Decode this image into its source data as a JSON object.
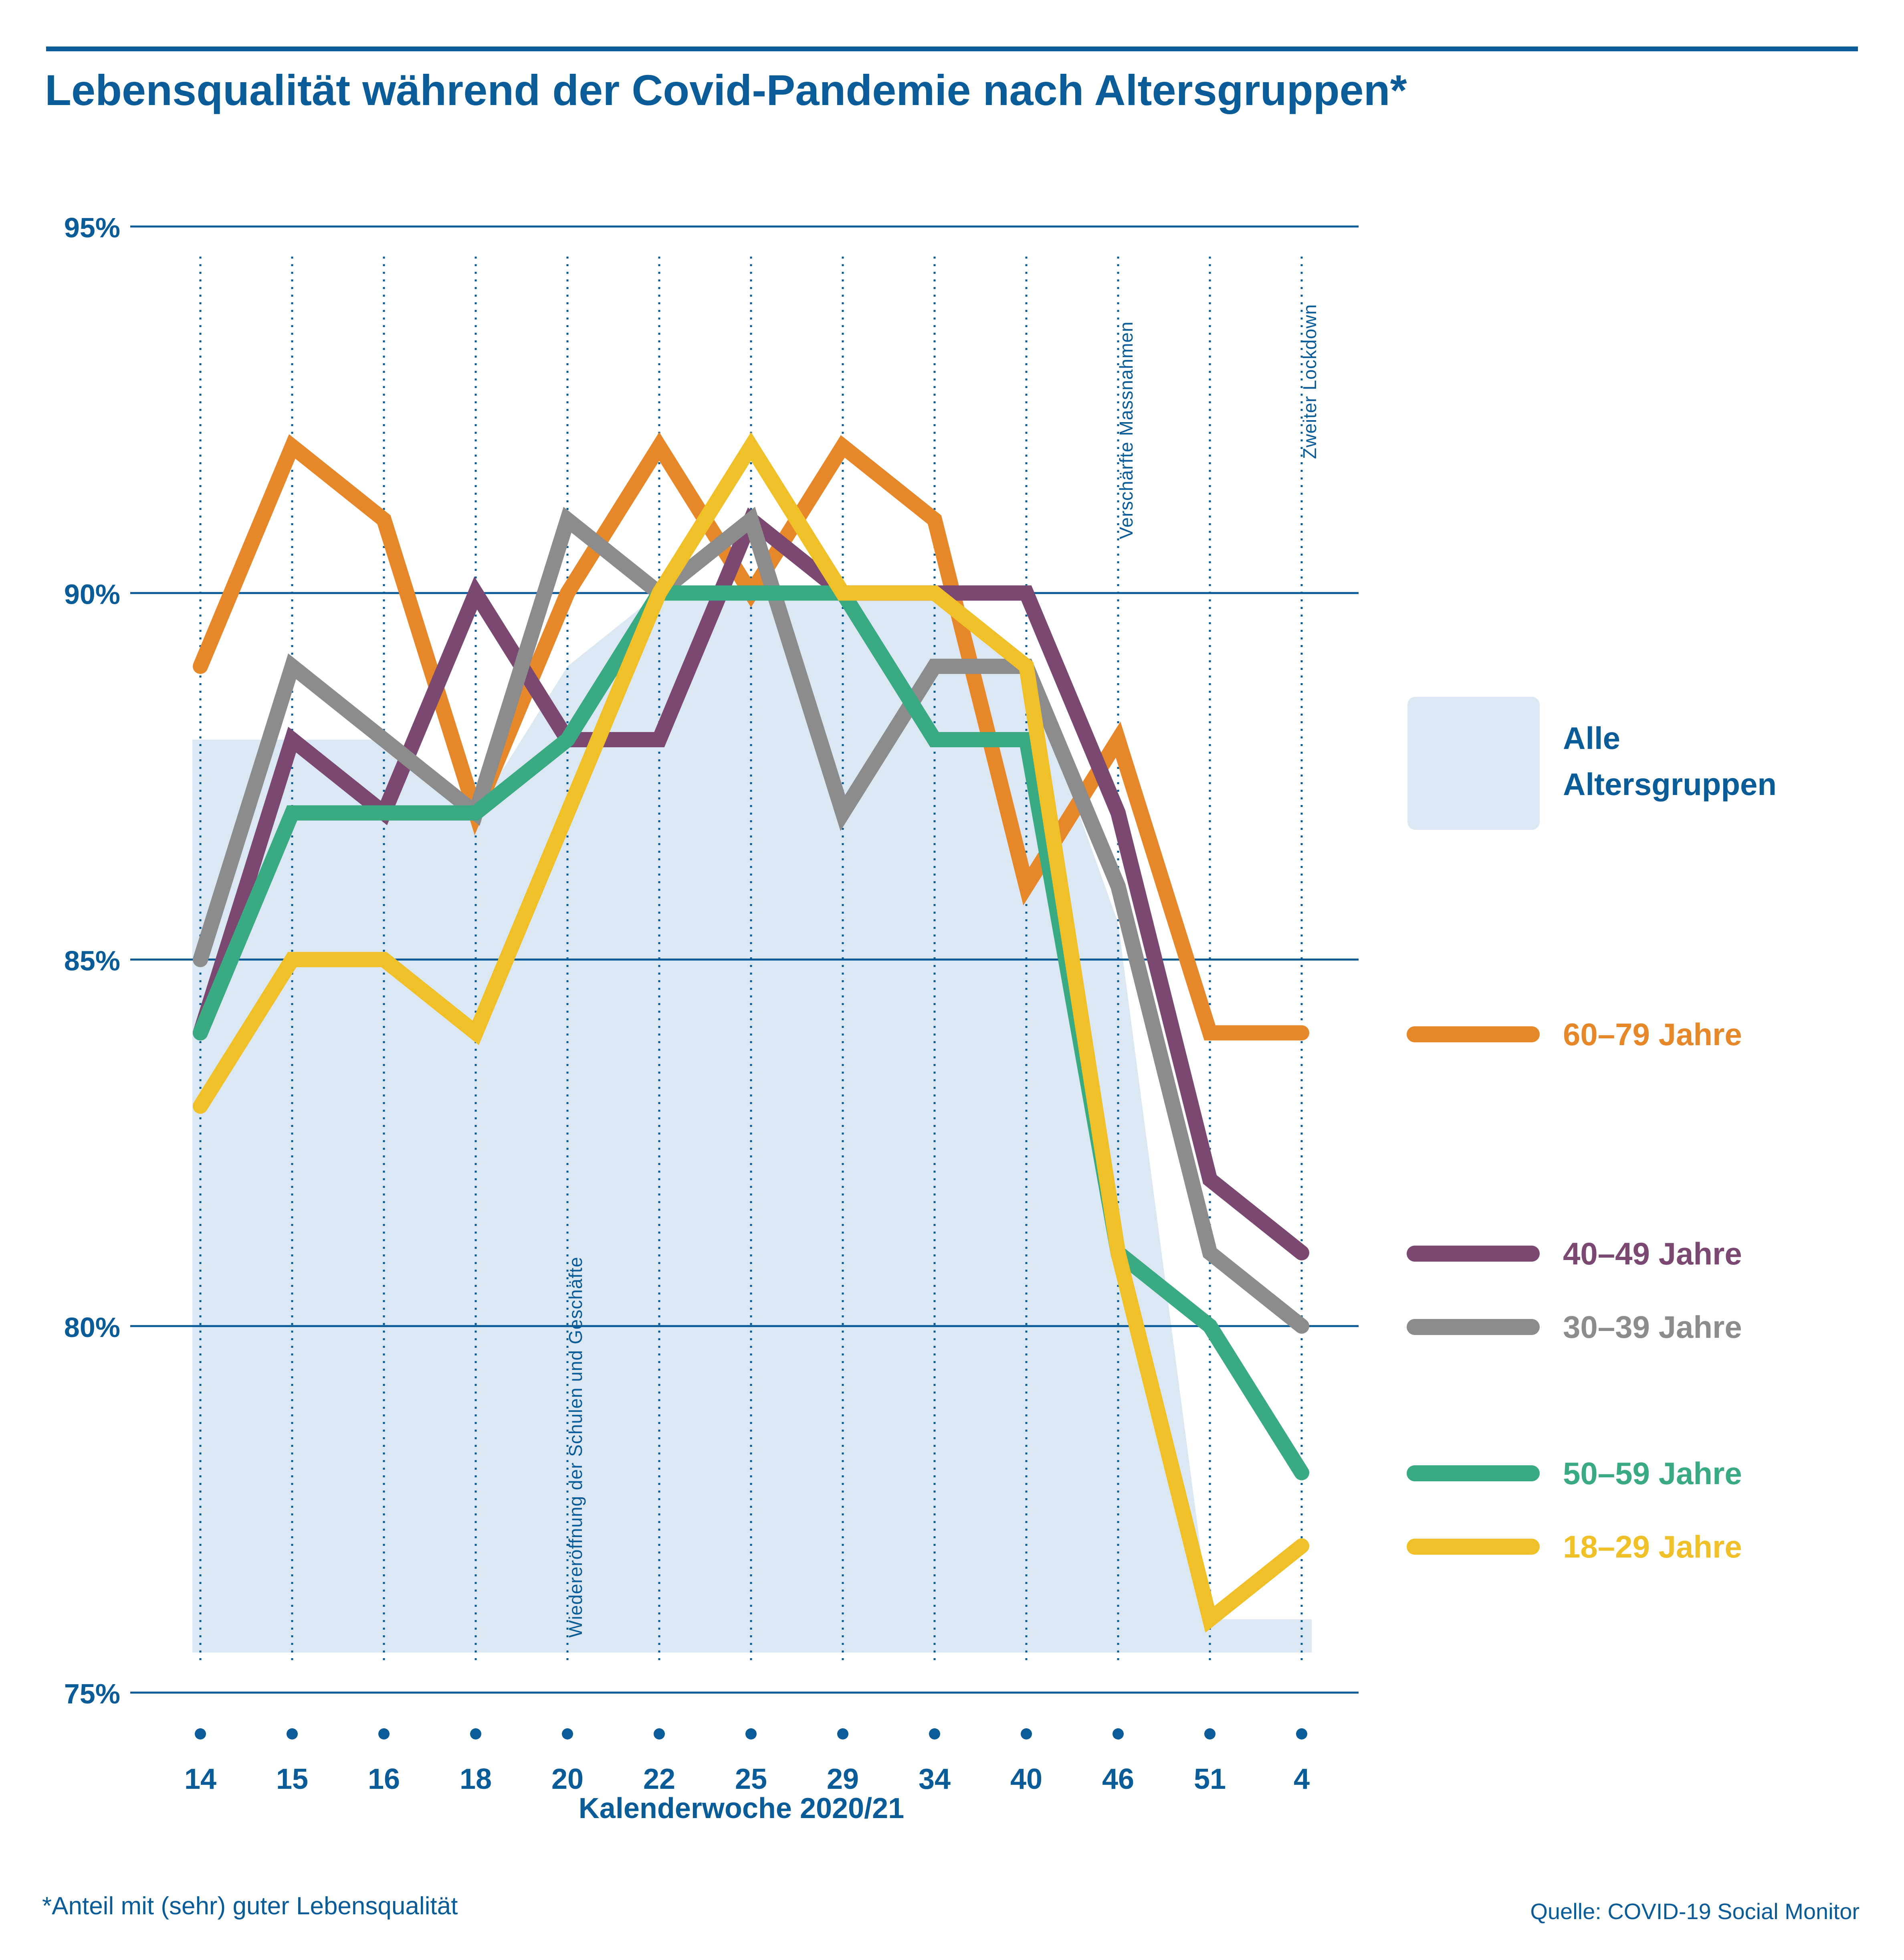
{
  "title": "Lebensqualität während der Covid-Pandemie nach Altersgruppen*",
  "footnote": "*Anteil mit (sehr) guter Lebensqualität",
  "source": "Quelle: COVID-19 Social Monitor",
  "colors": {
    "brand": "#0a5c99",
    "area": "#dbe7f2",
    "age_60_79": "#e6872a",
    "age_40_49": "#7a4870",
    "age_30_39": "#8c8c8c",
    "age_50_59": "#3aaa82",
    "age_18_29": "#f0c028"
  },
  "chart_data": {
    "type": "line",
    "title": "Lebensqualität während der Covid-Pandemie nach Altersgruppen*",
    "xlabel": "Kalenderwoche 2020/21",
    "ylabel": "",
    "categories": [
      "14",
      "15",
      "16",
      "18",
      "20",
      "22",
      "25",
      "29",
      "34",
      "40",
      "46",
      "51",
      "4"
    ],
    "ylim": [
      75,
      95
    ],
    "yticks": [
      95,
      90,
      85,
      80,
      75
    ],
    "ytick_labels": [
      "95%",
      "90%",
      "85%",
      "80%",
      "75%"
    ],
    "grid": true,
    "legend_position": "right",
    "area": {
      "name": "Alle Altersgruppen",
      "values": [
        88,
        88,
        88,
        87,
        89,
        90,
        90,
        90,
        90,
        89,
        85.5,
        76,
        76
      ]
    },
    "series": [
      {
        "name": "60–79 Jahre",
        "color_key": "age_60_79",
        "values": [
          89,
          92,
          91,
          87,
          90,
          92,
          90,
          92,
          91,
          86,
          88,
          84,
          84
        ]
      },
      {
        "name": "40–49 Jahre",
        "color_key": "age_40_49",
        "values": [
          84,
          88,
          87,
          90,
          88,
          88,
          91,
          90,
          90,
          90,
          87,
          82,
          81
        ]
      },
      {
        "name": "30–39 Jahre",
        "color_key": "age_30_39",
        "values": [
          85,
          89,
          88,
          87,
          91,
          90,
          91,
          87,
          89,
          89,
          86,
          81,
          80
        ]
      },
      {
        "name": "50–59 Jahre",
        "color_key": "age_50_59",
        "values": [
          84,
          87,
          87,
          87,
          88,
          90,
          90,
          90,
          88,
          88,
          81,
          80,
          78
        ]
      },
      {
        "name": "18–29 Jahre",
        "color_key": "age_18_29",
        "values": [
          83,
          85,
          85,
          84,
          87,
          90,
          92,
          90,
          90,
          89,
          81,
          76,
          77
        ]
      }
    ],
    "annotations": [
      {
        "category": "20",
        "text": "Wiedereröffnung der Schulen und Geschäfte"
      },
      {
        "category": "46",
        "text": "Verschärfte Massnahmen"
      },
      {
        "category": "4",
        "text": "Zweiter Lockdown"
      }
    ]
  }
}
